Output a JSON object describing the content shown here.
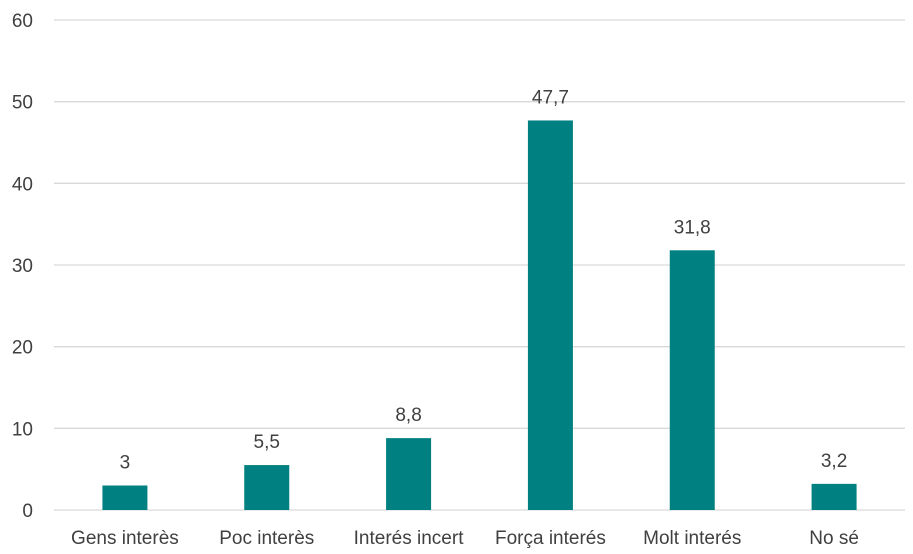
{
  "chart_data": {
    "type": "bar",
    "categories": [
      "Gens interès",
      "Poc interès",
      "Interés incert",
      "Força interés",
      "Molt interés",
      "No sé"
    ],
    "values": [
      3,
      5.5,
      8.8,
      47.7,
      31.8,
      3.2
    ],
    "data_labels": [
      "3",
      "5,5",
      "8,8",
      "47,7",
      "31,8",
      "3,2"
    ],
    "yticks": [
      "0",
      "10",
      "20",
      "30",
      "40",
      "50",
      "60"
    ],
    "ylim": [
      0,
      60
    ],
    "title": "",
    "xlabel": "",
    "ylabel": "",
    "grid": true,
    "legend": "none",
    "colors": {
      "bar": "#008080",
      "grid": "#d9d9d9",
      "text": "#404040"
    }
  }
}
